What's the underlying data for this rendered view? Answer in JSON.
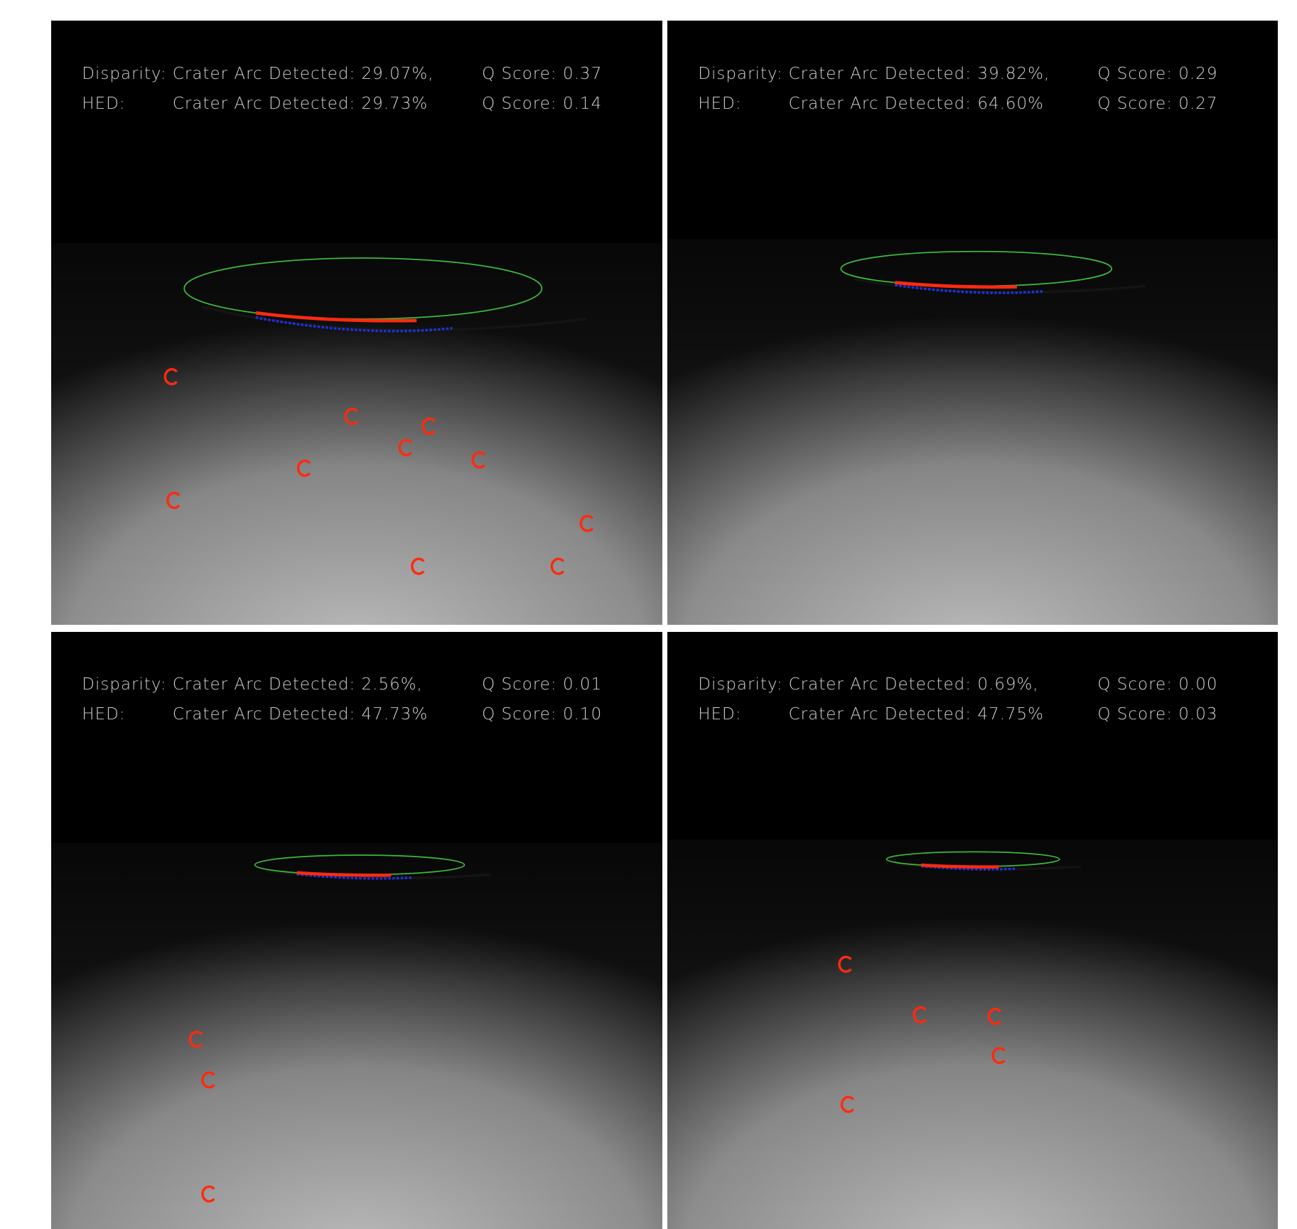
{
  "panels": [
    {
      "rows": [
        {
          "method": "Disparity:",
          "arc": "Crater Arc Detected: 29.07%,",
          "q": "Q Score: 0.37"
        },
        {
          "method": "HED:",
          "arc": "Crater Arc Detected: 29.73%",
          "q": "Q Score: 0.14"
        }
      ]
    },
    {
      "rows": [
        {
          "method": "Disparity:",
          "arc": "Crater Arc Detected: 39.82%,",
          "q": "Q Score: 0.29"
        },
        {
          "method": "HED:",
          "arc": "Crater Arc Detected: 64.60%",
          "q": "Q Score: 0.27"
        }
      ]
    },
    {
      "rows": [
        {
          "method": "Disparity:",
          "arc": "Crater Arc Detected: 2.56%,",
          "q": "Q Score: 0.01"
        },
        {
          "method": "HED:",
          "arc": "Crater Arc Detected: 47.73%",
          "q": "Q Score: 0.10"
        }
      ]
    },
    {
      "rows": [
        {
          "method": "Disparity:",
          "arc": "Crater Arc Detected: 0.69%,",
          "q": "Q Score: 0.00"
        },
        {
          "method": "HED:",
          "arc": "Crater Arc Detected: 47.75%",
          "q": "Q Score: 0.03"
        }
      ]
    }
  ]
}
